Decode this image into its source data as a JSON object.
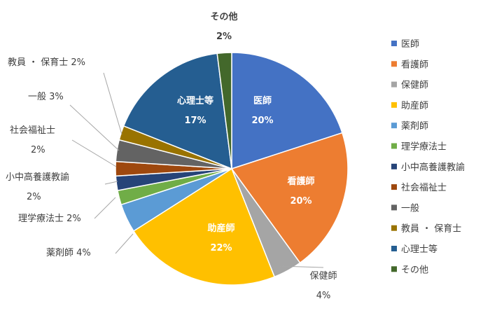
{
  "chart_data": {
    "type": "pie",
    "slices": [
      {
        "category": "医師",
        "value": 20,
        "label": "20%",
        "color": "#4472C4"
      },
      {
        "category": "看護師",
        "value": 20,
        "label": "20%",
        "color": "#ED7D31"
      },
      {
        "category": "保健師",
        "value": 4,
        "label": "4%",
        "color": "#A5A5A5"
      },
      {
        "category": "助産師",
        "value": 22,
        "label": "22%",
        "color": "#FFC000"
      },
      {
        "category": "薬剤師",
        "value": 4,
        "label": "4%",
        "color": "#5B9BD5"
      },
      {
        "category": "理学療法士",
        "value": 2,
        "label": "2%",
        "color": "#70AD47"
      },
      {
        "category": "小中高養護教諭",
        "value": 2,
        "label": "2%",
        "color": "#264478"
      },
      {
        "category": "社会福祉士",
        "value": 2,
        "label": "2%",
        "color": "#9E480E"
      },
      {
        "category": "一般",
        "value": 3,
        "label": "3%",
        "color": "#636363"
      },
      {
        "category": "教員・保育士",
        "value": 2,
        "label": "2%",
        "color": "#997300"
      },
      {
        "category": "心理士等",
        "value": 17,
        "label": "17%",
        "color": "#255E91"
      },
      {
        "category": "その他",
        "value": 2,
        "label": "2%",
        "color": "#43682B"
      }
    ],
    "display_labels": {
      "医師": "医師",
      "看護師": "看護師",
      "保健師": "保健師",
      "助産師": "助産師",
      "薬剤師": "薬剤師",
      "理学療法士": "理学療法士",
      "小中高養護教諭": "小中高養護教諭",
      "社会福祉士": "社会福祉士",
      "一般": "一般",
      "教員・保育士": "教員 ・ 保育士",
      "心理士等": "心理士等",
      "その他": "その他"
    },
    "legend_position": "right",
    "start_angle_deg": 0,
    "direction": "clockwise"
  }
}
